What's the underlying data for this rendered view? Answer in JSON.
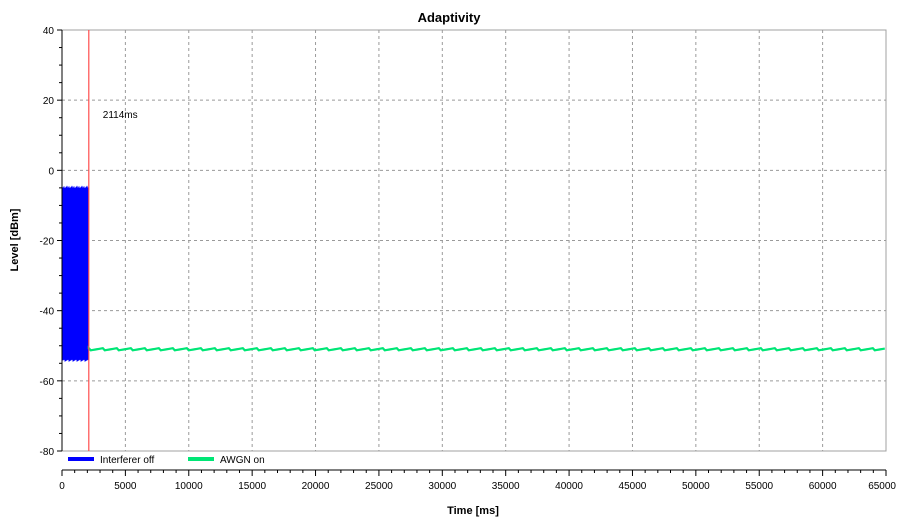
{
  "chart_data": {
    "type": "line",
    "title": "Adaptivity",
    "xlabel": "Time [ms]",
    "ylabel": "Level [dBm]",
    "xlim": [
      0,
      65000
    ],
    "ylim": [
      -80,
      40
    ],
    "xticks": [
      0,
      5000,
      10000,
      15000,
      20000,
      25000,
      30000,
      35000,
      40000,
      45000,
      50000,
      55000,
      60000,
      65000
    ],
    "xtick_labels": [
      "0",
      "5000",
      "10000",
      "15000",
      "20000",
      "25000",
      "30000",
      "35000",
      "40000",
      "45000",
      "50000",
      "55000",
      "60000",
      "65000"
    ],
    "yticks": [
      -80,
      -60,
      -40,
      -20,
      0,
      20,
      40
    ],
    "ytick_labels": [
      "-80",
      "-60",
      "-40",
      "-20",
      "0",
      "20",
      "40"
    ],
    "grid": true,
    "legend_position": "bottom-left",
    "series": [
      {
        "name": "Interferer off",
        "color": "#0000ff",
        "style": "dense band",
        "x_range": [
          0,
          2114
        ],
        "y_range": [
          -54,
          -5
        ]
      },
      {
        "name": "AWGN on",
        "color": "#00e676",
        "style": "flat line",
        "x_range": [
          2114,
          65000
        ],
        "y": -51
      }
    ],
    "annotations": [
      {
        "type": "vertical_line",
        "x": 2114,
        "color": "#ff4d4d",
        "label": "2114ms"
      }
    ]
  }
}
